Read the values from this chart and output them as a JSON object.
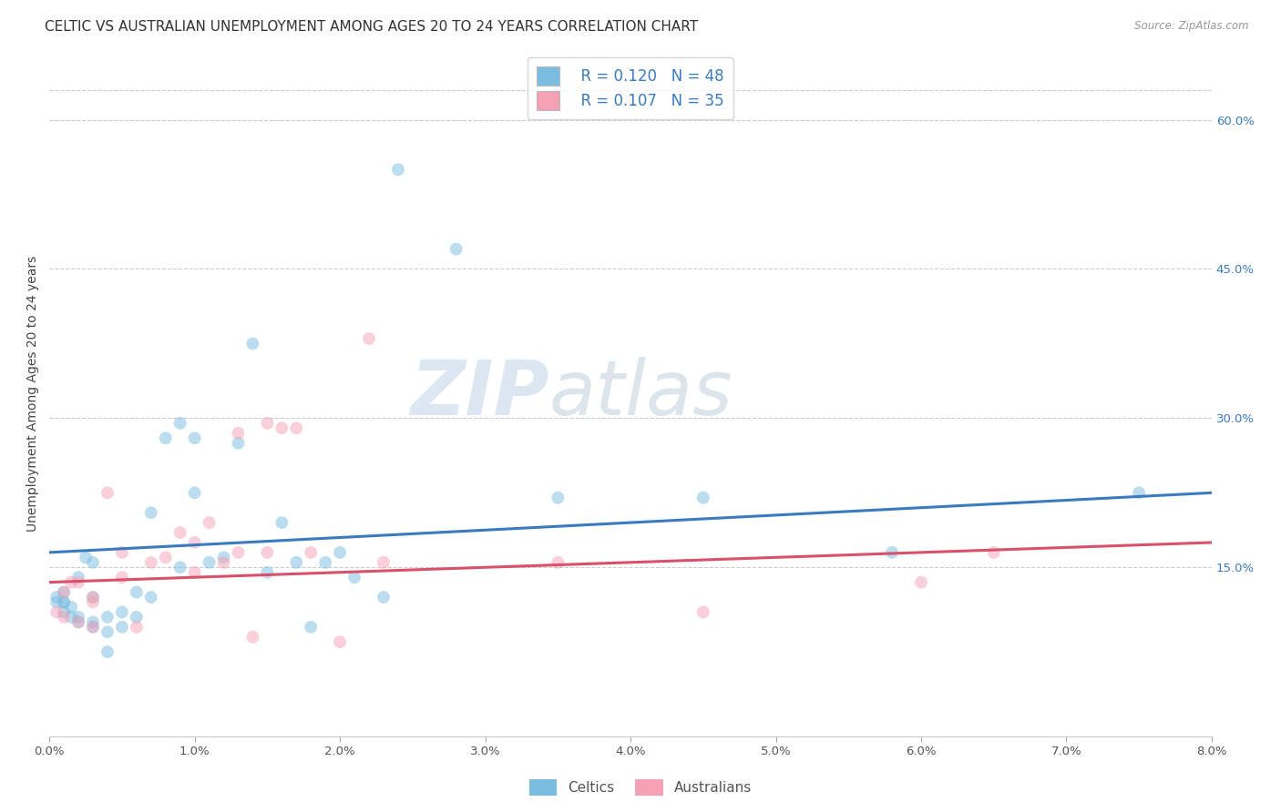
{
  "title": "CELTIC VS AUSTRALIAN UNEMPLOYMENT AMONG AGES 20 TO 24 YEARS CORRELATION CHART",
  "source": "Source: ZipAtlas.com",
  "ylabel": "Unemployment Among Ages 20 to 24 years",
  "xlim": [
    0.0,
    0.08
  ],
  "ylim": [
    -0.02,
    0.67
  ],
  "xticks": [
    0.0,
    0.01,
    0.02,
    0.03,
    0.04,
    0.05,
    0.06,
    0.07,
    0.08
  ],
  "xticklabels": [
    "0.0%",
    "1.0%",
    "2.0%",
    "3.0%",
    "4.0%",
    "5.0%",
    "6.0%",
    "7.0%",
    "8.0%"
  ],
  "yticks_right": [
    0.15,
    0.3,
    0.45,
    0.6
  ],
  "ytick_right_labels": [
    "15.0%",
    "30.0%",
    "45.0%",
    "60.0%"
  ],
  "grid_color": "#cccccc",
  "background_color": "#ffffff",
  "blue_color": "#7bbde0",
  "pink_color": "#f4a0b5",
  "trend_blue": "#3a7abf",
  "trend_pink": "#d9506a",
  "legend_r1": "R = 0.120",
  "legend_n1": "N = 48",
  "legend_r2": "R = 0.107",
  "legend_n2": "N = 35",
  "watermark_zip": "ZIP",
  "watermark_atlas": "atlas",
  "legend_celtics": "Celtics",
  "legend_australians": "Australians",
  "celtics_x": [
    0.0005,
    0.0005,
    0.001,
    0.001,
    0.001,
    0.001,
    0.0015,
    0.0015,
    0.002,
    0.002,
    0.002,
    0.0025,
    0.003,
    0.003,
    0.003,
    0.003,
    0.004,
    0.004,
    0.004,
    0.005,
    0.005,
    0.006,
    0.006,
    0.007,
    0.007,
    0.008,
    0.009,
    0.009,
    0.01,
    0.01,
    0.011,
    0.012,
    0.013,
    0.014,
    0.015,
    0.016,
    0.017,
    0.018,
    0.019,
    0.02,
    0.021,
    0.023,
    0.024,
    0.028,
    0.035,
    0.045,
    0.058,
    0.075
  ],
  "celtics_y": [
    0.115,
    0.12,
    0.105,
    0.115,
    0.115,
    0.125,
    0.1,
    0.11,
    0.095,
    0.1,
    0.14,
    0.16,
    0.09,
    0.095,
    0.12,
    0.155,
    0.065,
    0.085,
    0.1,
    0.09,
    0.105,
    0.1,
    0.125,
    0.12,
    0.205,
    0.28,
    0.15,
    0.295,
    0.225,
    0.28,
    0.155,
    0.16,
    0.275,
    0.375,
    0.145,
    0.195,
    0.155,
    0.09,
    0.155,
    0.165,
    0.14,
    0.12,
    0.55,
    0.47,
    0.22,
    0.22,
    0.165,
    0.225
  ],
  "australians_x": [
    0.0005,
    0.001,
    0.001,
    0.0015,
    0.002,
    0.002,
    0.003,
    0.003,
    0.003,
    0.004,
    0.005,
    0.005,
    0.006,
    0.007,
    0.008,
    0.009,
    0.01,
    0.01,
    0.011,
    0.012,
    0.013,
    0.013,
    0.014,
    0.015,
    0.015,
    0.016,
    0.017,
    0.018,
    0.02,
    0.022,
    0.023,
    0.035,
    0.045,
    0.06,
    0.065
  ],
  "australians_y": [
    0.105,
    0.1,
    0.125,
    0.135,
    0.095,
    0.135,
    0.09,
    0.115,
    0.12,
    0.225,
    0.14,
    0.165,
    0.09,
    0.155,
    0.16,
    0.185,
    0.145,
    0.175,
    0.195,
    0.155,
    0.165,
    0.285,
    0.08,
    0.165,
    0.295,
    0.29,
    0.29,
    0.165,
    0.075,
    0.38,
    0.155,
    0.155,
    0.105,
    0.135,
    0.165
  ],
  "trend_blue_x0": 0.0,
  "trend_blue_y0": 0.165,
  "trend_blue_x1": 0.08,
  "trend_blue_y1": 0.225,
  "trend_pink_x0": 0.0,
  "trend_pink_y0": 0.135,
  "trend_pink_x1": 0.08,
  "trend_pink_y1": 0.175,
  "title_fontsize": 11,
  "axis_fontsize": 10,
  "tick_fontsize": 9.5,
  "dot_size": 100,
  "dot_alpha": 0.5
}
